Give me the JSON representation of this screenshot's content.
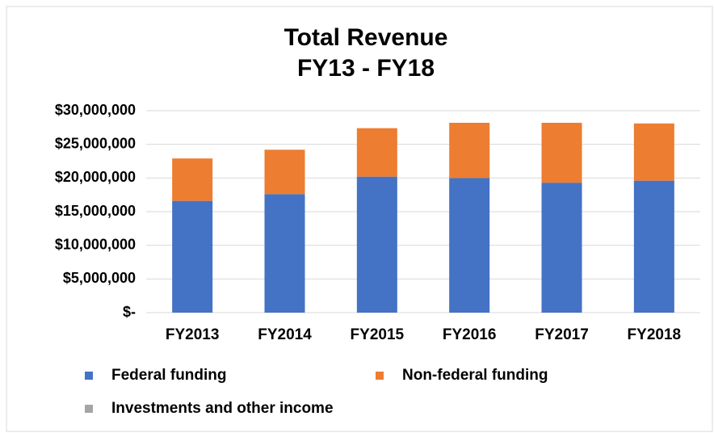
{
  "chart_data": {
    "type": "stacked_bar",
    "title": [
      "Total Revenue",
      "FY13 - FY18"
    ],
    "categories": [
      "FY2013",
      "FY2014",
      "FY2015",
      "FY2016",
      "FY2017",
      "FY2018"
    ],
    "series": [
      {
        "name": "Federal funding",
        "color": "#4472c4",
        "values": [
          16600000,
          17600000,
          20200000,
          20000000,
          19300000,
          19600000
        ]
      },
      {
        "name": "Non-federal funding",
        "color": "#ed7d31",
        "values": [
          6300000,
          6600000,
          7200000,
          8200000,
          8900000,
          8500000
        ]
      },
      {
        "name": "Investments and other income",
        "color": "#a5a5a5",
        "values": [
          0,
          0,
          0,
          0,
          0,
          0
        ]
      }
    ],
    "ylim": [
      0,
      30000000
    ],
    "yticks": [
      {
        "value": 0,
        "label": "$-"
      },
      {
        "value": 5000000,
        "label": "$5,000,000"
      },
      {
        "value": 10000000,
        "label": "$10,000,000"
      },
      {
        "value": 15000000,
        "label": "$15,000,000"
      },
      {
        "value": 20000000,
        "label": "$20,000,000"
      },
      {
        "value": 25000000,
        "label": "$25,000,000"
      },
      {
        "value": 30000000,
        "label": "$30,000,000"
      }
    ],
    "grid": true,
    "legend": "bottom"
  }
}
